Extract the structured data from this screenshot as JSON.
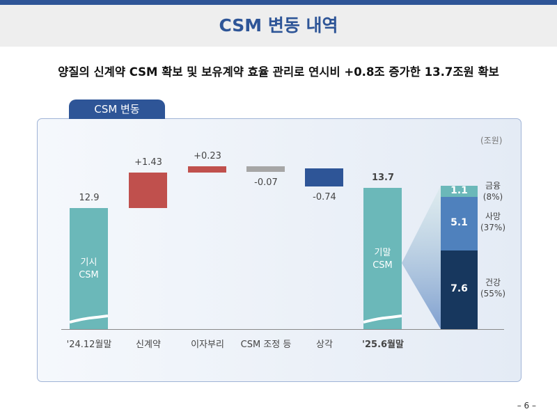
{
  "header": {
    "title": "CSM 변동 내역"
  },
  "subtitle": "양질의 신계약 CSM 확보 및 보유계약 효율 관리로 연시비 +0.8조 증가한 13.7조원 확보",
  "tab_label": "CSM 변동",
  "page_number": "– 6 –",
  "chart_data": {
    "type": "bar",
    "subtype": "waterfall",
    "unit": "(조원)",
    "categories": [
      "'24.12월말",
      "신계약",
      "이자부리",
      "CSM 조정 등",
      "상각",
      "'25.6월말"
    ],
    "values": [
      12.9,
      1.43,
      0.23,
      -0.07,
      -0.74,
      13.7
    ],
    "labels": [
      "12.9",
      "+1.43",
      "+0.23",
      "-0.07",
      "-0.74",
      "13.7"
    ],
    "bar_texts": {
      "start": [
        "기시",
        "CSM"
      ],
      "end": [
        "기말",
        "CSM"
      ]
    },
    "colors": {
      "total": "#6bb8b9",
      "increase": "#c0504d",
      "adjust": "#a6a6a6",
      "decrease": "#2e5597"
    },
    "breakdown": {
      "segments": [
        {
          "name": "금융",
          "value": 1.1,
          "label": "1.1",
          "pct": "(8%)",
          "color": "#6bb8b9"
        },
        {
          "name": "사망",
          "value": 5.1,
          "label": "5.1",
          "pct": "(37%)",
          "color": "#4f81bd"
        },
        {
          "name": "건강",
          "value": 7.6,
          "label": "7.6",
          "pct": "(55%)",
          "color": "#17375e"
        }
      ]
    }
  }
}
